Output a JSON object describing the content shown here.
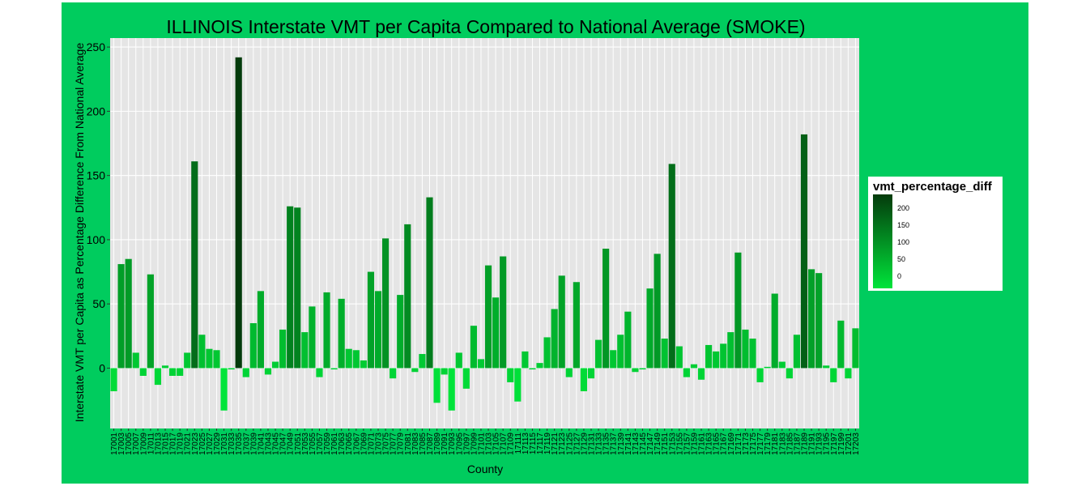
{
  "colors": {
    "frame": "#00CC5E",
    "panel": "#E5E5E5",
    "gridMajor": "#FFFFFF",
    "gridMinor": "#F2F2F2",
    "low": "#00E43A",
    "high": "#043B0C"
  },
  "chart_data": {
    "type": "bar",
    "title": "ILLINOIS Interstate VMT per Capita Compared to National Average (SMOKE)",
    "xlabel": "County",
    "ylabel": "Interstate VMT per Capita as Percentage Difference From National Average",
    "ylim": [
      -47,
      257
    ],
    "yticks": [
      0,
      50,
      100,
      150,
      200,
      250
    ],
    "grid": true,
    "legend": {
      "title": "vmt_percentage_diff",
      "position": "right",
      "breaks": [
        0,
        50,
        100,
        150,
        200
      ],
      "range": [
        -33,
        242
      ]
    },
    "categories": [
      "17001",
      "17003",
      "17005",
      "17007",
      "17009",
      "17011",
      "17013",
      "17015",
      "17017",
      "17019",
      "17021",
      "17023",
      "17025",
      "17027",
      "17029",
      "17031",
      "17033",
      "17035",
      "17037",
      "17039",
      "17041",
      "17043",
      "17045",
      "17047",
      "17049",
      "17051",
      "17053",
      "17055",
      "17057",
      "17059",
      "17061",
      "17063",
      "17065",
      "17067",
      "17069",
      "17071",
      "17073",
      "17075",
      "17077",
      "17079",
      "17081",
      "17083",
      "17085",
      "17087",
      "17089",
      "17091",
      "17093",
      "17095",
      "17097",
      "17099",
      "17101",
      "17103",
      "17105",
      "17107",
      "17109",
      "17111",
      "17113",
      "17115",
      "17117",
      "17119",
      "17121",
      "17123",
      "17125",
      "17127",
      "17129",
      "17131",
      "17133",
      "17135",
      "17137",
      "17139",
      "17141",
      "17143",
      "17145",
      "17147",
      "17149",
      "17151",
      "17153",
      "17155",
      "17157",
      "17159",
      "17161",
      "17163",
      "17165",
      "17167",
      "17169",
      "17171",
      "17173",
      "17175",
      "17177",
      "17179",
      "17181",
      "17183",
      "17185",
      "17187",
      "17189",
      "17191",
      "17193",
      "17195",
      "17197",
      "17199",
      "17201",
      "17203"
    ],
    "values": [
      -18,
      81,
      85,
      12,
      -6,
      73,
      -13,
      2,
      -6,
      -6,
      12,
      161,
      26,
      15,
      14,
      -33,
      -1,
      242,
      -7,
      35,
      60,
      -5,
      5,
      30,
      126,
      125,
      28,
      48,
      -7,
      59,
      -1,
      54,
      15,
      14,
      6,
      75,
      60,
      101,
      -8,
      57,
      112,
      -3,
      11,
      133,
      -27,
      -5,
      -33,
      12,
      -16,
      33,
      7,
      80,
      55,
      87,
      -11,
      -26,
      13,
      -1,
      4,
      24,
      46,
      72,
      -7,
      67,
      -18,
      -8,
      22,
      93,
      14,
      26,
      44,
      -3,
      -1,
      62,
      89,
      23,
      159,
      17,
      -7,
      3,
      -9,
      18,
      13,
      19,
      28,
      90,
      30,
      23,
      -11,
      1,
      58,
      5,
      -8,
      26,
      182,
      77,
      74,
      2,
      -11,
      37,
      -8,
      31
    ]
  }
}
